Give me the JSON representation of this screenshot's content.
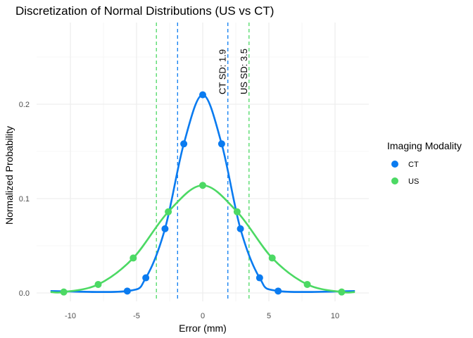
{
  "chart_data": {
    "type": "line",
    "title": "Discretization of Normal Distributions (US vs CT)",
    "xlabel": "Error (mm)",
    "ylabel": "Normalized Probability",
    "xlim": [
      -11.5,
      11.5
    ],
    "ylim": [
      0,
      0.2
    ],
    "x_ticks": [
      -10,
      -5,
      0,
      5,
      10
    ],
    "x_tick_labels": [
      "-10",
      "-5",
      "0",
      "5",
      "10"
    ],
    "y_ticks": [
      0,
      0.1,
      0.2
    ],
    "y_tick_labels": [
      "0.0",
      "0.1",
      "0.2"
    ],
    "grid": true,
    "legend": {
      "title": "Imaging Modality",
      "position": "right"
    },
    "series": [
      {
        "name": "CT",
        "color": "#0A7BF0",
        "sd": 1.9,
        "points": [
          {
            "x": -5.7,
            "y": 0.002
          },
          {
            "x": -4.3,
            "y": 0.016
          },
          {
            "x": -2.85,
            "y": 0.068
          },
          {
            "x": -1.43,
            "y": 0.158
          },
          {
            "x": 0,
            "y": 0.21
          },
          {
            "x": 1.43,
            "y": 0.158
          },
          {
            "x": 2.85,
            "y": 0.068
          },
          {
            "x": 4.3,
            "y": 0.016
          },
          {
            "x": 5.7,
            "y": 0.002
          }
        ]
      },
      {
        "name": "US",
        "color": "#4CD964",
        "sd": 3.5,
        "points": [
          {
            "x": -10.5,
            "y": 0.001
          },
          {
            "x": -7.9,
            "y": 0.009
          },
          {
            "x": -5.25,
            "y": 0.037
          },
          {
            "x": -2.6,
            "y": 0.086
          },
          {
            "x": 0,
            "y": 0.114
          },
          {
            "x": 2.6,
            "y": 0.086
          },
          {
            "x": 5.25,
            "y": 0.037
          },
          {
            "x": 7.9,
            "y": 0.009
          },
          {
            "x": 10.5,
            "y": 0.001
          }
        ]
      }
    ],
    "vlines": [
      {
        "x": -1.9,
        "series": "CT"
      },
      {
        "x": 1.9,
        "series": "CT",
        "label": "CT SD: 1.9"
      },
      {
        "x": -3.5,
        "series": "US"
      },
      {
        "x": 3.5,
        "series": "US",
        "label": "US SD: 3.5"
      }
    ]
  }
}
